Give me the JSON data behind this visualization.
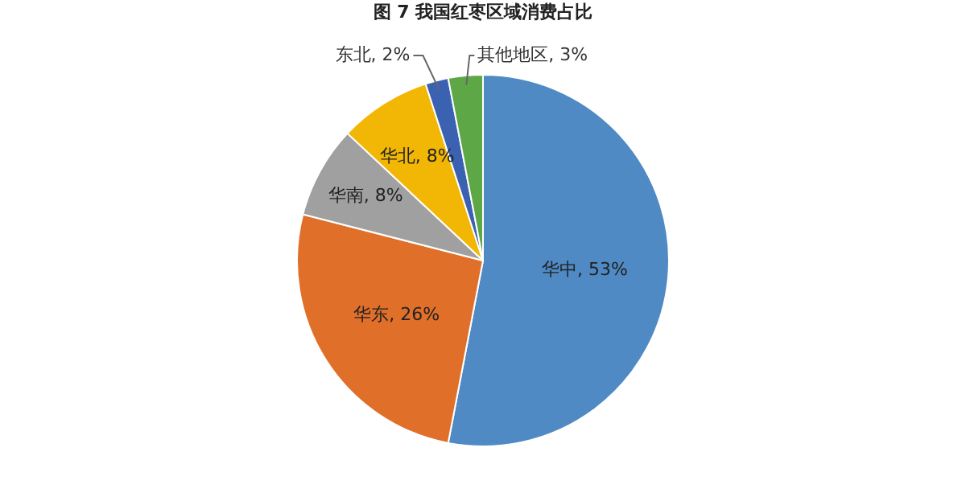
{
  "chart_data": {
    "type": "pie",
    "title": "图 7 我国红枣区域消费占比",
    "categories": [
      "华中",
      "华东",
      "华南",
      "华北",
      "东北",
      "其他地区"
    ],
    "values": [
      53,
      26,
      8,
      8,
      2,
      3
    ],
    "colors": [
      "#4f8ac4",
      "#e06f2a",
      "#a0a0a0",
      "#f2b705",
      "#3a62b0",
      "#5ea747"
    ],
    "value_labels": [
      "53%",
      "26%",
      "8%",
      "8%",
      "2%",
      "3%"
    ],
    "data_labels": true,
    "legend": false
  }
}
